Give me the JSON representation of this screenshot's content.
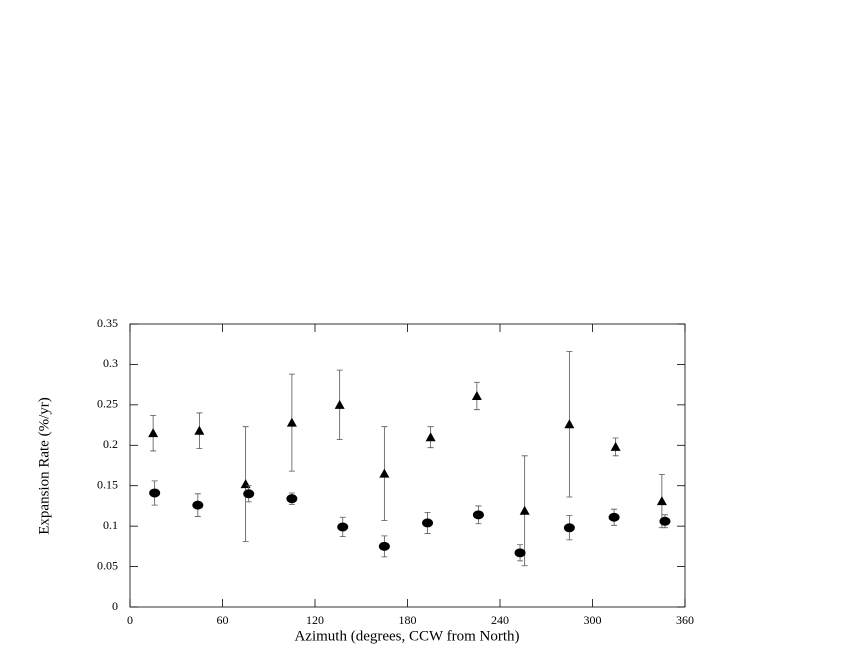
{
  "chart_data": {
    "type": "scatter",
    "x_label": "Azimuth (degrees, CCW from North)",
    "y_label": "Expansion Rate (%/yr)",
    "xlim": [
      0,
      360
    ],
    "xticks": [
      0,
      60,
      120,
      180,
      240,
      300,
      360
    ],
    "ylim": [
      0,
      0.35
    ],
    "yticks": [
      0,
      0.05,
      0.1,
      0.15,
      0.2,
      0.25,
      0.3,
      0.35
    ],
    "series": [
      {
        "marker": "triangle",
        "color": "#000000",
        "x": [
          15,
          45,
          75,
          105,
          136,
          165,
          195,
          225,
          256,
          285,
          315,
          345
        ],
        "values": [
          0.215,
          0.218,
          0.152,
          0.228,
          0.25,
          0.165,
          0.21,
          0.261,
          0.119,
          0.226,
          0.198,
          0.131
        ],
        "errors": [
          0.022,
          0.022,
          0.071,
          0.06,
          0.043,
          0.058,
          0.013,
          0.017,
          0.068,
          0.09,
          0.011,
          0.033
        ]
      },
      {
        "marker": "circle",
        "color": "#000000",
        "x": [
          16,
          44,
          77,
          105,
          138,
          165,
          193,
          226,
          253,
          285,
          314,
          347
        ],
        "values": [
          0.141,
          0.126,
          0.14,
          0.134,
          0.099,
          0.075,
          0.104,
          0.114,
          0.067,
          0.098,
          0.111,
          0.106
        ],
        "errors": [
          0.015,
          0.014,
          0.01,
          0.007,
          0.012,
          0.013,
          0.013,
          0.011,
          0.01,
          0.015,
          0.01,
          0.008
        ]
      }
    ]
  }
}
